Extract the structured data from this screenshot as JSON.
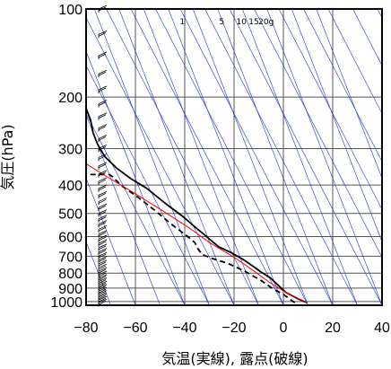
{
  "chart_data": {
    "type": "line",
    "xlabel": "気温(実線), 露点(破線)",
    "ylabel": "気圧(hPa)",
    "xlim": [
      -80,
      40
    ],
    "ylim": [
      1030,
      100
    ],
    "y_scale": "log",
    "x_ticks": [
      "−80",
      "−60",
      "−40",
      "−20",
      "0",
      "20",
      "40"
    ],
    "x_tick_values": [
      -80,
      -60,
      -40,
      -20,
      0,
      20,
      40
    ],
    "y_ticks": [
      "100",
      "200",
      "300",
      "400",
      "500",
      "600",
      "700",
      "800",
      "900",
      "1000"
    ],
    "y_tick_values": [
      100,
      200,
      300,
      400,
      500,
      600,
      700,
      800,
      900,
      1000
    ],
    "mixing_ratio_labels": [
      {
        "text": "1",
        "x": -41
      },
      {
        "text": "5",
        "x": -25
      },
      {
        "text": "10",
        "x": -17
      },
      {
        "text": "15",
        "x": -12
      },
      {
        "text": "20g",
        "x": -7
      }
    ],
    "series": [
      {
        "style": "solid",
        "color": "#000000",
        "points": [
          [
            10,
            1010
          ],
          [
            7,
            980
          ],
          [
            3,
            930
          ],
          [
            1,
            880
          ],
          [
            -1,
            830
          ],
          [
            -4,
            790
          ],
          [
            -6,
            760
          ],
          [
            -9,
            720
          ],
          [
            -13,
            680
          ],
          [
            -17,
            650
          ],
          [
            -19,
            620
          ],
          [
            -21,
            590
          ],
          [
            -24,
            550
          ],
          [
            -27,
            510
          ],
          [
            -31,
            470
          ],
          [
            -34,
            440
          ],
          [
            -37,
            410
          ],
          [
            -42,
            380
          ],
          [
            -46,
            350
          ],
          [
            -49,
            320
          ],
          [
            -50,
            290
          ],
          [
            -50,
            265
          ],
          [
            -49,
            240
          ],
          [
            -49,
            215
          ],
          [
            -51,
            200
          ],
          [
            -53,
            185
          ],
          [
            -54,
            170
          ],
          [
            -55,
            158
          ],
          [
            -56,
            145
          ],
          [
            -58,
            130
          ],
          [
            -59,
            120
          ],
          [
            -60,
            110
          ],
          [
            -61,
            100
          ]
        ]
      },
      {
        "style": "dashed",
        "color": "#000000",
        "points": [
          [
            5,
            1010
          ],
          [
            4,
            990
          ],
          [
            2,
            950
          ],
          [
            -2,
            900
          ],
          [
            -5,
            850
          ],
          [
            -10,
            790
          ],
          [
            -16,
            740
          ],
          [
            -22,
            710
          ],
          [
            -25,
            690
          ],
          [
            -26,
            650
          ],
          [
            -26,
            630
          ],
          [
            -28,
            600
          ],
          [
            -33,
            540
          ],
          [
            -37,
            490
          ],
          [
            -42,
            440
          ],
          [
            -47,
            400
          ],
          [
            -49,
            375
          ],
          [
            -50,
            368
          ],
          [
            -58,
            368
          ],
          [
            -63,
            368
          ],
          [
            -66,
            368
          ],
          [
            -75,
            368
          ],
          [
            -76,
            368
          ]
        ]
      },
      {
        "style": "solid",
        "color": "#ff0000",
        "points": [
          [
            10,
            1010
          ],
          [
            3,
            930
          ],
          [
            -2,
            860
          ],
          [
            -7,
            780
          ],
          [
            -12,
            710
          ],
          [
            -20,
            630
          ],
          [
            -26,
            560
          ],
          [
            -34,
            490
          ],
          [
            -43,
            425
          ],
          [
            -53,
            365
          ],
          [
            -62,
            315
          ],
          [
            -72,
            265
          ],
          [
            -81,
            220
          ]
        ]
      }
    ],
    "wind_barbs": 42
  }
}
